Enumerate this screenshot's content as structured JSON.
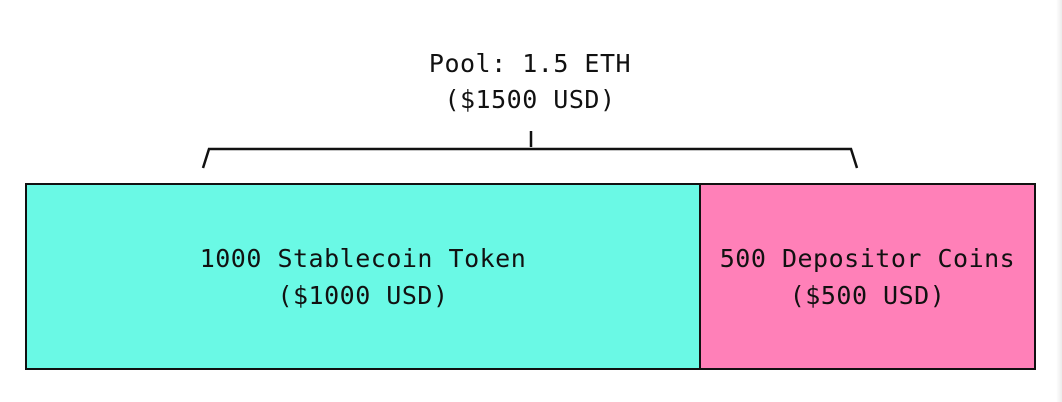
{
  "pool": {
    "line1": "Pool: 1.5 ETH",
    "line2": "($1500 USD)"
  },
  "segments": [
    {
      "label": "1000 Stablecoin Token",
      "value": "($1000 USD)",
      "color": "#6AF9E5"
    },
    {
      "label": "500 Depositor Coins",
      "value": "($500 USD)",
      "color": "#FF80B8"
    }
  ],
  "colors": {
    "outline": "#111111",
    "background": "#FFFFFF"
  }
}
